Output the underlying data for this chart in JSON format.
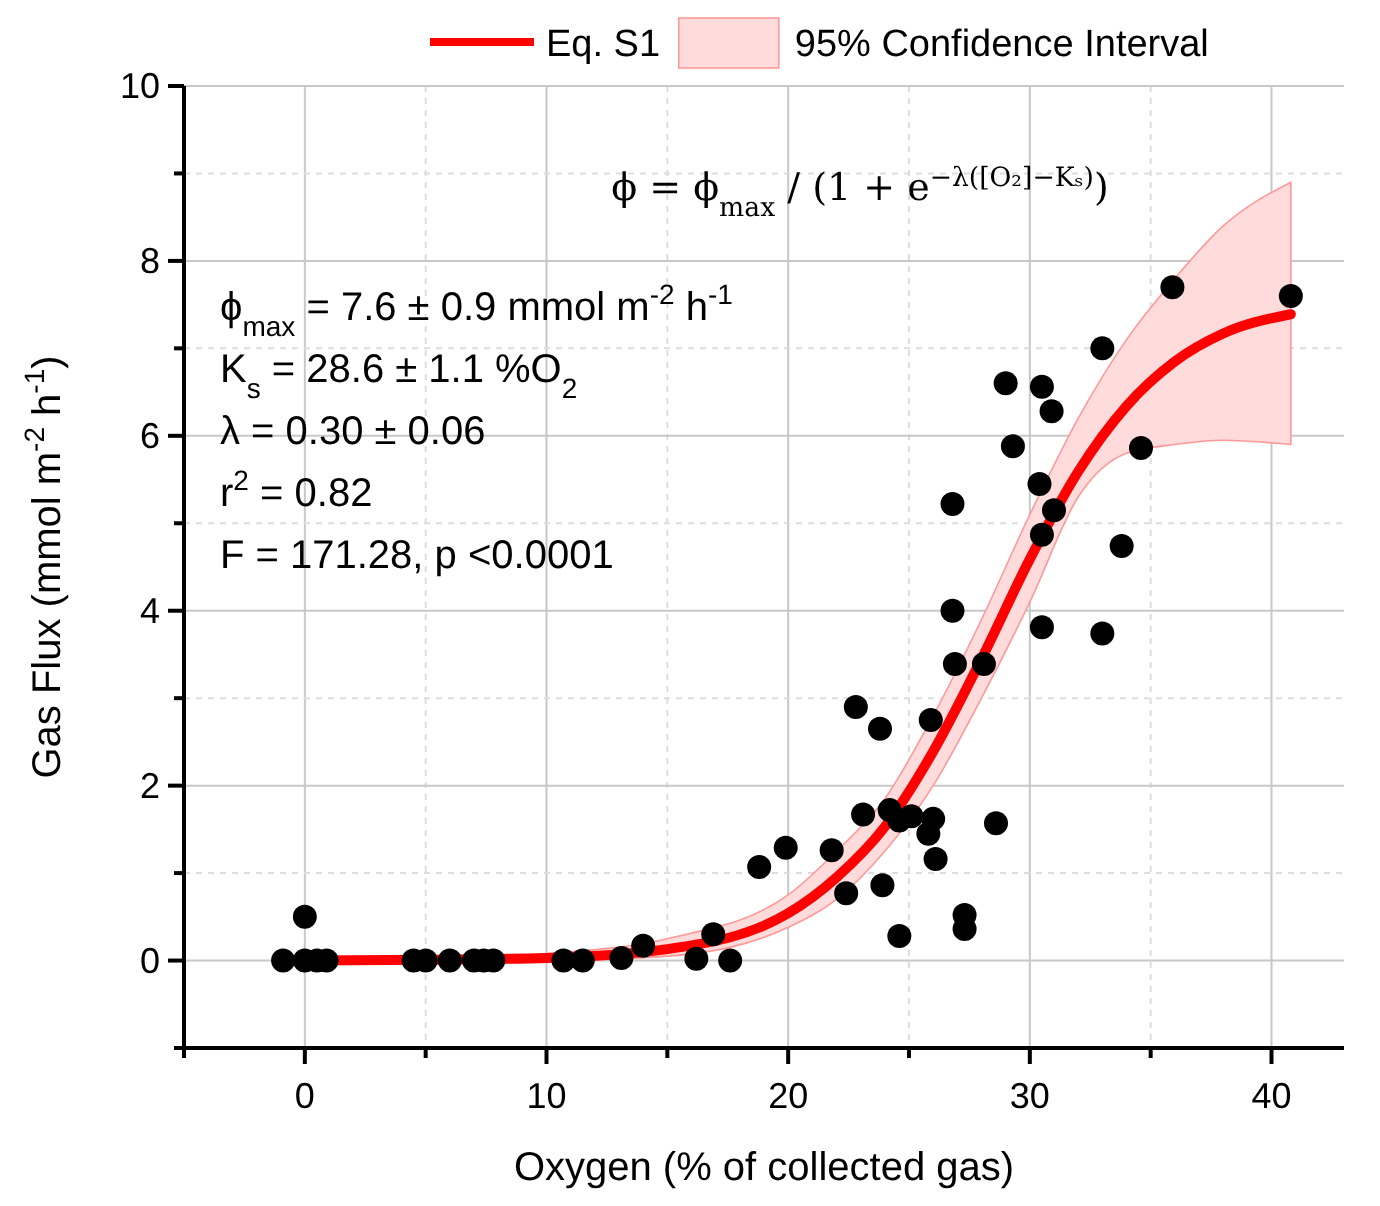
{
  "chart_data": {
    "type": "scatter",
    "xlabel": "Oxygen (% of collected gas)",
    "ylabel": "Gas Flux (mmol m$^{-2}$ h$^{-1}$)",
    "xlim": [
      -5,
      43
    ],
    "ylim": [
      -1,
      10
    ],
    "xticks": [
      {
        "value": -5,
        "label": null
      },
      0,
      {
        "value": 5,
        "label": null
      },
      10,
      {
        "value": 15,
        "label": null
      },
      20,
      {
        "value": 25,
        "label": null
      },
      30,
      {
        "value": 35,
        "label": null
      },
      40
    ],
    "yticks": [
      {
        "value": -1,
        "label": null
      },
      0,
      {
        "value": 1,
        "label": null
      },
      2,
      {
        "value": 3,
        "label": null
      },
      4,
      {
        "value": 5,
        "label": null
      },
      6,
      {
        "value": 7,
        "label": null
      },
      8,
      {
        "value": 9,
        "label": null
      },
      10
    ],
    "grid": true,
    "legend": "top",
    "marker": "circle",
    "annotations": [
      "95% Confidence Interval",
      "ϕ = ϕ$_{max}$ / (1 + e$^{−λ([O₂]−Kₛ)}$)",
      "ϕ$_{max}$ = 7.6 ± 0.9 mmol m$^{-2}$ h$^{-1}$",
      "K$_{s}$ = 28.6 ± 1.1 %O$_{2}$",
      "λ = 0.30 ± 0.06",
      "r$^{2}$ = 0.82",
      "F = 171.28, p <0.0001"
    ],
    "series": [
      {
        "color": "#000000",
        "x": [
          -0.9,
          0,
          0,
          0.5,
          0.9,
          4.5,
          5.0,
          6.0,
          7.0,
          7.4,
          7.8,
          10.7,
          11.5,
          13.1,
          14.0,
          16.2,
          16.9,
          17.6,
          18.8,
          19.9,
          21.8,
          22.4,
          22.8,
          23.1,
          23.8,
          23.9,
          24.2,
          24.6,
          24.6,
          25.1,
          25.8,
          26.0,
          26.1,
          25.9,
          26.8,
          26.9,
          27.3,
          27.3,
          28.1,
          28.6,
          30.5,
          33.0,
          35.9,
          40.8,
          33.0,
          29.0,
          30.5,
          30.9,
          29.3,
          34.6,
          30.4,
          26.8,
          31.0,
          30.5,
          33.8
        ],
        "values": [
          0,
          0.5,
          0,
          0,
          0,
          0,
          0,
          0,
          0,
          0,
          0,
          0,
          0,
          0.03,
          0.17,
          0.02,
          0.3,
          0,
          1.07,
          1.29,
          1.26,
          0.77,
          2.9,
          1.67,
          2.65,
          0.86,
          1.72,
          0.28,
          1.6,
          1.65,
          1.45,
          1.62,
          1.16,
          2.75,
          4.0,
          3.39,
          0.52,
          0.36,
          3.39,
          1.57,
          3.81,
          3.74,
          7.7,
          7.6,
          7.0,
          6.6,
          6.56,
          6.28,
          5.88,
          5.86,
          5.45,
          5.22,
          5.15,
          4.87,
          4.74
        ]
      },
      {
        "type": "line",
        "name": "Eq. S1",
        "color": "#ff0000",
        "marker": "none",
        "x": [
          0,
          5,
          10,
          15,
          20,
          22,
          24,
          26,
          28,
          30,
          32,
          34,
          36,
          38,
          40.8
        ],
        "values": [
          0,
          0.01,
          0.03,
          0.13,
          0.54,
          0.95,
          1.53,
          2.39,
          3.45,
          4.59,
          5.59,
          6.34,
          6.85,
          7.17,
          7.39
        ],
        "lower": [
          0,
          0,
          0,
          0.05,
          0.38,
          0.7,
          1.25,
          2.0,
          3.0,
          4.1,
          5.3,
          5.8,
          5.9,
          5.95,
          5.9
        ],
        "upper": [
          0.01,
          0.02,
          0.08,
          0.25,
          0.75,
          1.25,
          1.85,
          2.8,
          3.9,
          5.1,
          6.2,
          7.1,
          7.8,
          8.4,
          8.9
        ]
      }
    ]
  }
}
